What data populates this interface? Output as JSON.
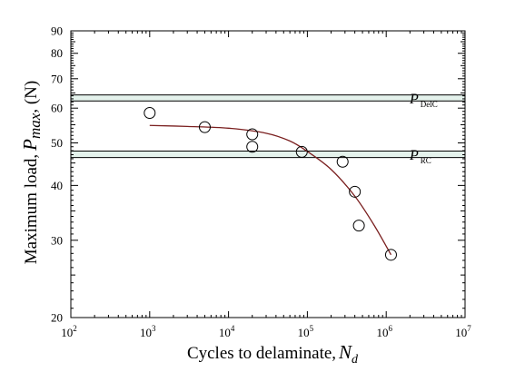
{
  "chart_data": {
    "type": "scatter",
    "xlabel": "Cycles to delaminate,",
    "xlabel_var": "N",
    "xlabel_var_sub": "d",
    "ylabel": "Maximum load,",
    "ylabel_var": "P",
    "ylabel_var_sub": "max",
    "ylabel_unit": ", (N)",
    "x_scale": "log",
    "y_scale": "log",
    "xlim": [
      100,
      10000000
    ],
    "ylim": [
      20,
      90
    ],
    "x_ticks": [
      {
        "value": 100,
        "base": "10",
        "exp": "2"
      },
      {
        "value": 1000,
        "base": "10",
        "exp": "3"
      },
      {
        "value": 10000,
        "base": "10",
        "exp": "4"
      },
      {
        "value": 100000,
        "base": "10",
        "exp": "5"
      },
      {
        "value": 1000000,
        "base": "10",
        "exp": "6"
      },
      {
        "value": 10000000,
        "base": "10",
        "exp": "7"
      }
    ],
    "y_ticks": [
      {
        "value": 20,
        "label": "20"
      },
      {
        "value": 30,
        "label": "30"
      },
      {
        "value": 40,
        "label": "40"
      },
      {
        "value": 50,
        "label": "50"
      },
      {
        "value": 60,
        "label": "60"
      },
      {
        "value": 70,
        "label": "70"
      },
      {
        "value": 80,
        "label": "80"
      },
      {
        "value": 90,
        "label": "90"
      }
    ],
    "series": [
      {
        "marker": "open-circle",
        "points": [
          {
            "x": 1000,
            "y": 58.5
          },
          {
            "x": 5000,
            "y": 54.3
          },
          {
            "x": 20000,
            "y": 52.3
          },
          {
            "x": 20000,
            "y": 49.0
          },
          {
            "x": 85000,
            "y": 47.7
          },
          {
            "x": 280000,
            "y": 45.3
          },
          {
            "x": 400000,
            "y": 38.7
          },
          {
            "x": 450000,
            "y": 32.4
          },
          {
            "x": 1150000,
            "y": 27.8
          }
        ]
      },
      {
        "style": "fit-curve",
        "color": "#7a1f1f",
        "points": [
          {
            "x": 1000,
            "y": 54.8
          },
          {
            "x": 3000,
            "y": 54.5
          },
          {
            "x": 10000,
            "y": 54.0
          },
          {
            "x": 30000,
            "y": 52.6
          },
          {
            "x": 60000,
            "y": 50.5
          },
          {
            "x": 100000,
            "y": 47.8
          },
          {
            "x": 200000,
            "y": 43.5
          },
          {
            "x": 400000,
            "y": 37.8
          },
          {
            "x": 700000,
            "y": 32.5
          },
          {
            "x": 1150000,
            "y": 27.8
          }
        ]
      }
    ],
    "reference_bands": [
      {
        "name": "DelC",
        "label_main": "P",
        "label_sub": "DelC",
        "y_low": 62.3,
        "y_high": 64.3,
        "color": "#e4f2ec"
      },
      {
        "name": "RC",
        "label_main": "P",
        "label_sub": "RC",
        "y_low": 46.3,
        "y_high": 47.9,
        "color": "#e4f2ec"
      }
    ],
    "grid": false
  }
}
